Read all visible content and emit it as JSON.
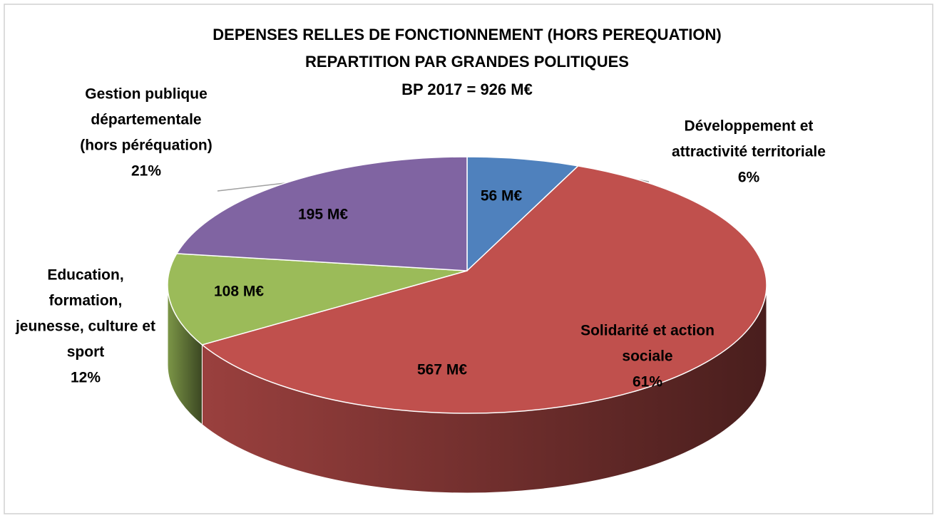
{
  "chart_data": {
    "type": "pie",
    "title": [
      "DEPENSES RELLES DE FONCTIONNEMENT (HORS PEREQUATION)",
      "REPARTITION PAR GRANDES POLITIQUES",
      "BP 2017 = 926 M€"
    ],
    "categories": [
      [
        "Développement et",
        "attractivité territoriale"
      ],
      [
        "Solidarité et action",
        "sociale"
      ],
      [
        "Education,",
        "formation,",
        "jeunesse, culture et",
        "sport"
      ],
      [
        "Gestion publique",
        "départementale",
        "(hors péréquation)"
      ]
    ],
    "values": [
      56,
      567,
      108,
      195
    ],
    "value_labels": [
      "56 M€",
      "567 M€",
      "108 M€",
      "195 M€"
    ],
    "shares": [
      6,
      61,
      12,
      21
    ],
    "share_labels": [
      "6%",
      "61%",
      "12%",
      "21%"
    ],
    "colors": [
      "#4f81bd",
      "#c0504d",
      "#9bbb59",
      "#8064a2"
    ]
  }
}
